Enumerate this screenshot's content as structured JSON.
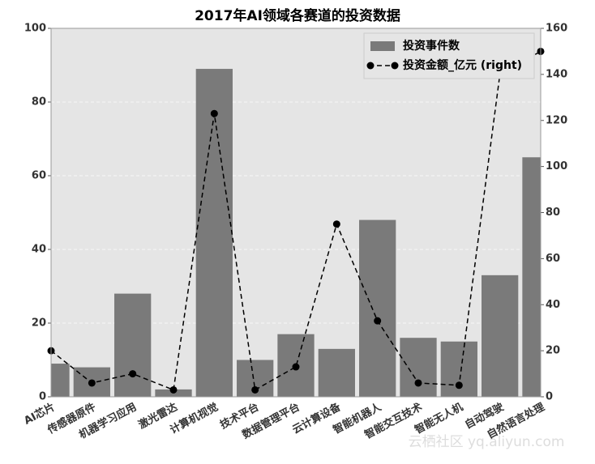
{
  "chart_data": {
    "type": "bar",
    "title": "2017年AI领域各赛道的投资数据",
    "categories": [
      "AI芯片",
      "传感器原件",
      "机器学习应用",
      "激光雷达",
      "计算机视觉",
      "技术平台",
      "数据管理平台",
      "云计算设备",
      "智能机器人",
      "智能交互技术",
      "智能无人机",
      "自动驾驶",
      "自然语言处理"
    ],
    "series": [
      {
        "name": "投资事件数",
        "type": "bar",
        "color": "#7a7a7a",
        "values": [
          9,
          8,
          28,
          2,
          89,
          10,
          17,
          13,
          48,
          16,
          15,
          33,
          65
        ]
      },
      {
        "name": "投资金额_亿元 (right)",
        "type": "line",
        "axis": "y2",
        "color": "#000000",
        "values": [
          20,
          6,
          10,
          3,
          123,
          3,
          13,
          75,
          33,
          6,
          5,
          140,
          150
        ]
      }
    ],
    "ylim": [
      0,
      100
    ],
    "yticks": [
      0,
      20,
      40,
      60,
      80,
      100
    ],
    "y2lim": [
      0,
      160
    ],
    "y2ticks": [
      0,
      20,
      40,
      60,
      80,
      100,
      120,
      140,
      160
    ],
    "grid": true,
    "legend": "upper right",
    "watermark": "云栖社区 yq.aliyun.com"
  }
}
